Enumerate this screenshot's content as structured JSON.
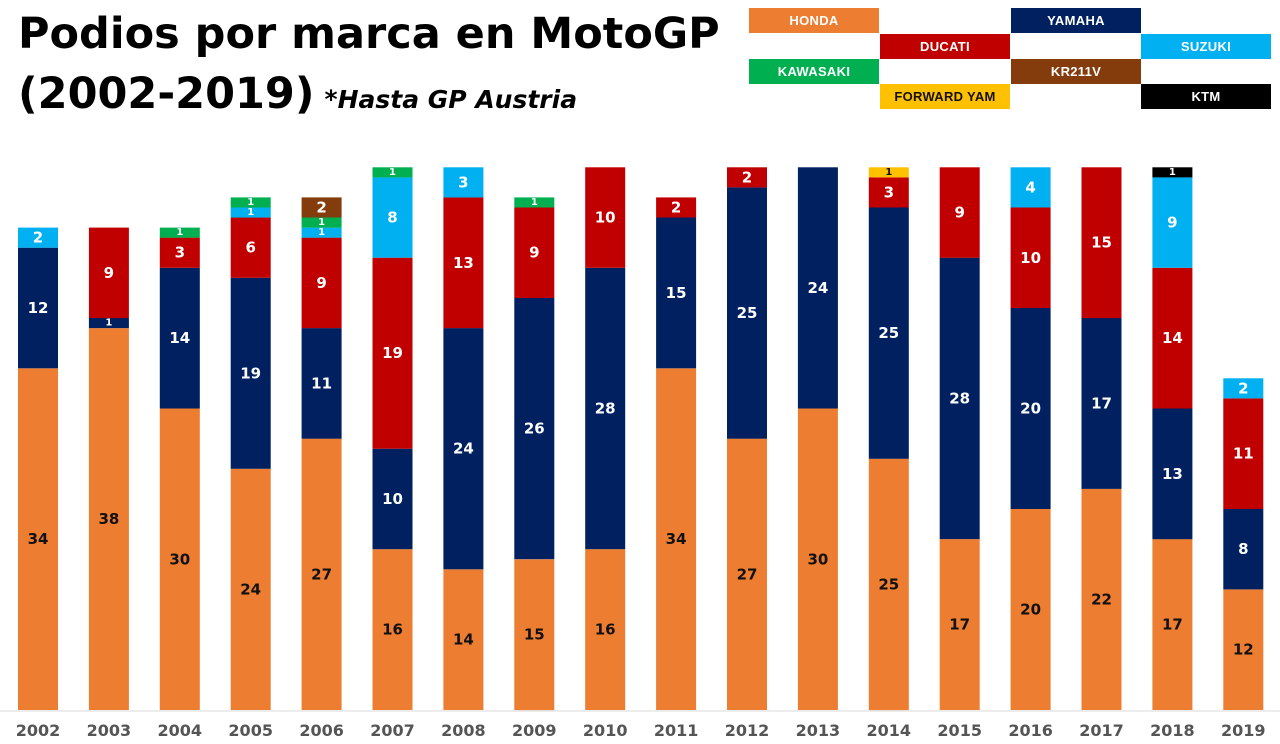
{
  "title": {
    "line1": "Podios por marca en MotoGP",
    "line2": "(2002-2019)",
    "note": "*Hasta GP Austria"
  },
  "legend": [
    {
      "label": "HONDA",
      "color": "#ED7D31"
    },
    {
      "label": "DUCATI",
      "color": "#C00000"
    },
    {
      "label": "YAMAHA",
      "color": "#002060"
    },
    {
      "label": "SUZUKI",
      "color": "#00B0F0"
    },
    {
      "label": "KAWASAKI",
      "color": "#00B050"
    },
    {
      "label": "FORWARD YAM",
      "color": "#FFC000"
    },
    {
      "label": "KR211V",
      "color": "#843C0C"
    },
    {
      "label": "KTM",
      "color": "#000000"
    }
  ],
  "chart_data": {
    "type": "bar",
    "stacked": true,
    "title": "Podios por marca en MotoGP (2002-2019)",
    "categories": [
      "2002",
      "2003",
      "2004",
      "2005",
      "2006",
      "2007",
      "2008",
      "2009",
      "2010",
      "2011",
      "2012",
      "2013",
      "2014",
      "2015",
      "2016",
      "2017",
      "2018",
      "2019"
    ],
    "series": [
      {
        "name": "HONDA",
        "color": "#ED7D31",
        "label_color": "#111111",
        "values": [
          34,
          38,
          30,
          24,
          27,
          16,
          14,
          15,
          16,
          34,
          27,
          30,
          25,
          17,
          20,
          22,
          17,
          12
        ]
      },
      {
        "name": "YAMAHA",
        "color": "#002060",
        "label_color": "#ffffff",
        "values": [
          12,
          1,
          14,
          19,
          11,
          10,
          24,
          26,
          28,
          15,
          25,
          24,
          25,
          28,
          20,
          17,
          13,
          8
        ]
      },
      {
        "name": "DUCATI",
        "color": "#C00000",
        "label_color": "#ffffff",
        "values": [
          0,
          9,
          3,
          6,
          9,
          19,
          13,
          9,
          10,
          2,
          2,
          0,
          3,
          9,
          10,
          15,
          14,
          11
        ]
      },
      {
        "name": "SUZUKI",
        "color": "#00B0F0",
        "label_color": "#ffffff",
        "values": [
          2,
          0,
          0,
          1,
          1,
          8,
          3,
          0,
          0,
          0,
          0,
          0,
          0,
          0,
          4,
          0,
          9,
          2
        ]
      },
      {
        "name": "KAWASAKI",
        "color": "#00B050",
        "label_color": "#ffffff",
        "values": [
          0,
          0,
          1,
          1,
          1,
          1,
          0,
          1,
          0,
          0,
          0,
          0,
          0,
          0,
          0,
          0,
          0,
          0
        ]
      },
      {
        "name": "KR211V",
        "color": "#843C0C",
        "label_color": "#ffffff",
        "values": [
          0,
          0,
          0,
          0,
          2,
          0,
          0,
          0,
          0,
          0,
          0,
          0,
          0,
          0,
          0,
          0,
          0,
          0
        ]
      },
      {
        "name": "FORWARD YAM",
        "color": "#FFC000",
        "label_color": "#111111",
        "values": [
          0,
          0,
          0,
          0,
          0,
          0,
          0,
          0,
          0,
          0,
          0,
          0,
          1,
          0,
          0,
          0,
          0,
          0
        ]
      },
      {
        "name": "KTM",
        "color": "#000000",
        "label_color": "#ffffff",
        "values": [
          0,
          0,
          0,
          0,
          0,
          0,
          0,
          0,
          0,
          0,
          0,
          0,
          0,
          0,
          0,
          0,
          1,
          0
        ]
      }
    ],
    "ylim": [
      0,
      54
    ],
    "xlabel": "",
    "ylabel": "",
    "legend_position": "top-right"
  }
}
